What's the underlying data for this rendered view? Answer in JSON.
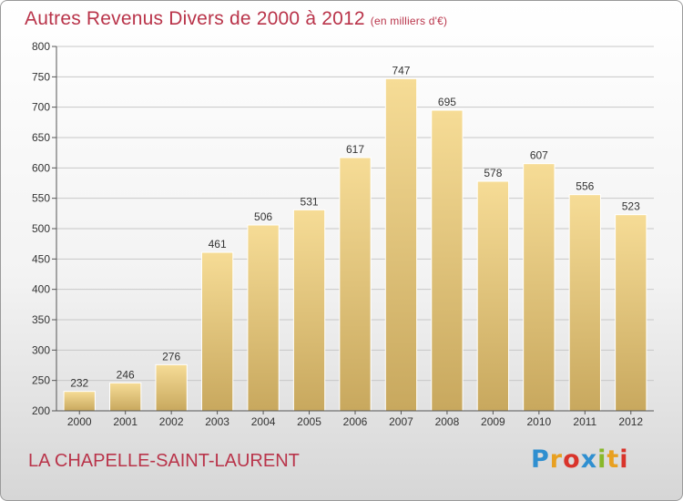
{
  "title": "Autres Revenus Divers de 2000 à 2012",
  "unit": "(en milliers d'€)",
  "commune": "LA CHAPELLE-SAINT-LAURENT",
  "logo": {
    "letters": [
      "P",
      "r",
      "o",
      "x",
      "i",
      "t",
      "i"
    ],
    "colors": [
      "#2f8fd0",
      "#e8a020",
      "#d9342b",
      "#2f8fd0",
      "#88b82a",
      "#e8a020",
      "#d9342b"
    ]
  },
  "colors": {
    "bar_top": "#f6dc96",
    "bar_bottom": "#c8a85e",
    "grid": "#c8c8c8",
    "axis": "#555555",
    "title": "#b9344a"
  },
  "chart_data": {
    "type": "bar",
    "categories": [
      "2000",
      "2001",
      "2002",
      "2003",
      "2004",
      "2005",
      "2006",
      "2007",
      "2008",
      "2009",
      "2010",
      "2011",
      "2012"
    ],
    "values": [
      232,
      246,
      276,
      461,
      506,
      531,
      617,
      747,
      695,
      578,
      607,
      556,
      523
    ],
    "ylim": [
      200,
      800
    ],
    "yticks": [
      200,
      250,
      300,
      350,
      400,
      450,
      500,
      550,
      600,
      650,
      700,
      750,
      800
    ],
    "grid": true
  }
}
